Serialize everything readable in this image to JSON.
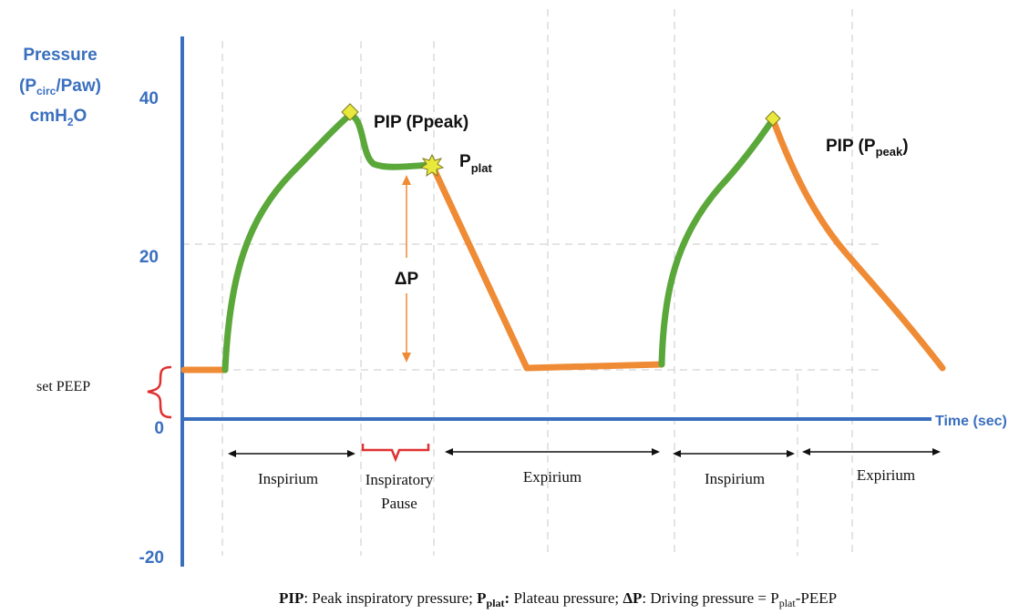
{
  "colors": {
    "axis": "#3a6fbf",
    "axis_text": "#3a6fbf",
    "inspiration": "#5aa73a",
    "expiration": "#ef8b35",
    "marker": "#e9e83c",
    "brace": "#e03131",
    "arrow": "#ef8b35",
    "grid": "#c8c8c8"
  },
  "y_axis": {
    "title_line1": "Pressure",
    "title_line2_a": "(P",
    "title_line2_sub": "circ",
    "title_line2_b": "/Paw)",
    "title_line3_a": "cmH",
    "title_line3_sub": "2",
    "title_line3_b": "O",
    "ticks": [
      "40",
      "20",
      "0",
      "-20"
    ]
  },
  "x_axis": {
    "title": "Time (sec)"
  },
  "set_peep_label": "set PEEP",
  "annotations": {
    "pip1_a": "PIP (P",
    "pip1_sub": "peak",
    "pip1_b": ")",
    "pplat_a": "P",
    "pplat_sub": "plat",
    "delta_p": "ΔP",
    "pip2_a": "PIP (P",
    "pip2_sub": "peak",
    "pip2_b": ")"
  },
  "phases": {
    "inspirium1": "Inspirium",
    "pause_line1": "Inspiratory",
    "pause_line2": "Pause",
    "expirium1": "Expirium",
    "inspirium2": "Inspirium",
    "expirium2": "Expirium"
  },
  "caption": {
    "pip_term": "PIP",
    "pip_def": ": Peak inspiratory pressure; ",
    "pplat_term_a": "P",
    "pplat_term_sub": "plat",
    "pplat_term_b": ":",
    "pplat_def": " Plateau pressure; ",
    "dp_term": "ΔP",
    "dp_def_a": ": Driving pressure = P",
    "dp_def_sub": "plat",
    "dp_def_b": "-PEEP"
  }
}
